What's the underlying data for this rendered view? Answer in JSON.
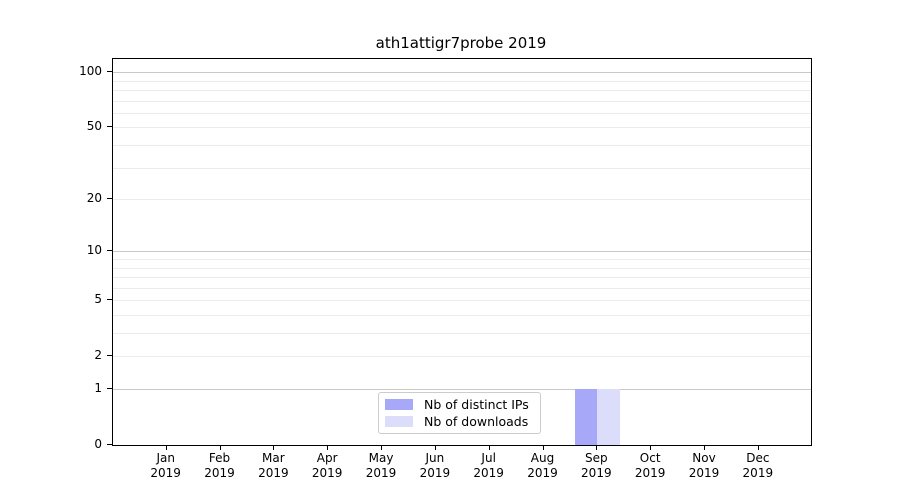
{
  "title": "ath1attigr7probe 2019",
  "chart_data": {
    "type": "bar",
    "title": "ath1attigr7probe 2019",
    "x_year": "2019",
    "categories": [
      "Jan",
      "Feb",
      "Mar",
      "Apr",
      "May",
      "Jun",
      "Jul",
      "Aug",
      "Sep",
      "Oct",
      "Nov",
      "Dec"
    ],
    "series": [
      {
        "name": "Nb of distinct IPs",
        "color": "#a8a8f8",
        "values": [
          0,
          0,
          0,
          0,
          0,
          0,
          0,
          0,
          1,
          0,
          0,
          0
        ]
      },
      {
        "name": "Nb of downloads",
        "color": "#dcdcfb",
        "values": [
          0,
          0,
          0,
          0,
          0,
          0,
          0,
          0,
          1,
          0,
          0,
          0
        ]
      }
    ],
    "y_axis": {
      "scale": "log1p",
      "ticks": [
        0,
        1,
        2,
        5,
        10,
        20,
        50,
        100
      ],
      "emphasized_ticks": [
        1,
        10,
        100
      ],
      "minor_gridlines": [
        3,
        4,
        6,
        7,
        8,
        9,
        30,
        40,
        60,
        70,
        80,
        90
      ],
      "min": 0,
      "max": 118
    },
    "legend": {
      "entries": [
        "Nb of distinct IPs",
        "Nb of downloads"
      ],
      "position": "lower center"
    },
    "grid": "both"
  }
}
